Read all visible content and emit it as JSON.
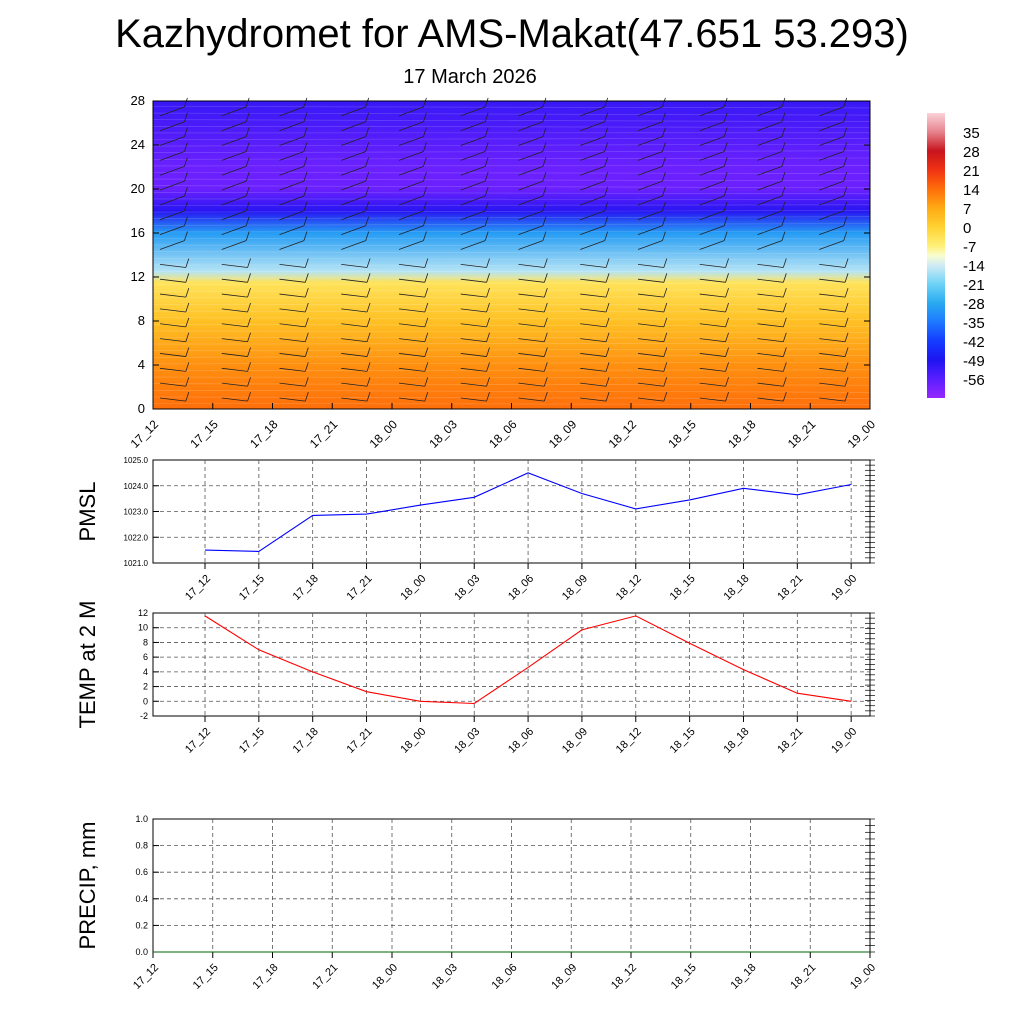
{
  "title": "Kazhydromet for AMS-Makat(47.651 53.293)",
  "subtitle": "17 March 2026",
  "colors": {
    "pmsl_line": "#0000ff",
    "temp_line": "#ff0000",
    "precip_line": "#006400"
  },
  "chart_data": [
    {
      "type": "heatmap",
      "name": "vertical-profile",
      "ytick_labels": [
        "0",
        "4",
        "8",
        "12",
        "16",
        "20",
        "24",
        "28"
      ],
      "ylim": [
        0,
        28
      ],
      "x_tick_labels": [
        "17_12",
        "17_15",
        "17_18",
        "17_21",
        "18_00",
        "18_03",
        "18_06",
        "18_09",
        "18_12",
        "18_15",
        "18_18",
        "18_21",
        "19_00"
      ],
      "colorbar_labels": [
        "35",
        "28",
        "21",
        "14",
        "7",
        "0",
        "-7",
        "-14",
        "-21",
        "-28",
        "-35",
        "-42",
        "-49",
        "-56"
      ],
      "colorbar_range": [
        -63,
        42
      ],
      "level_values": [
        {
          "y": 0,
          "value": 14
        },
        {
          "y": 4,
          "value": 10
        },
        {
          "y": 8,
          "value": 3
        },
        {
          "y": 11.5,
          "value": -4
        },
        {
          "y": 12.5,
          "value": -16
        },
        {
          "y": 16,
          "value": -30
        },
        {
          "y": 18,
          "value": -50
        },
        {
          "y": 20,
          "value": -58
        },
        {
          "y": 22,
          "value": -58
        },
        {
          "y": 28,
          "value": -52
        }
      ]
    },
    {
      "type": "line",
      "name": "pmsl",
      "ylabel": "PMSL",
      "ylim": [
        1021.0,
        1025.0
      ],
      "ytick_labels": [
        "1021.0",
        "1022.0",
        "1023.0",
        "1024.0",
        "1025.0"
      ],
      "categories": [
        "17_12",
        "17_15",
        "17_18",
        "17_21",
        "18_00",
        "18_03",
        "18_06",
        "18_09",
        "18_12",
        "18_15",
        "18_18",
        "18_21",
        "19_00"
      ],
      "values": [
        1021.5,
        1021.45,
        1022.85,
        1022.9,
        1023.25,
        1023.55,
        1024.5,
        1023.7,
        1023.1,
        1023.45,
        1023.9,
        1023.65,
        1024.05
      ],
      "grid": true
    },
    {
      "type": "line",
      "name": "temp",
      "ylabel": "TEMP at 2 M",
      "ylim": [
        -2,
        12
      ],
      "ytick_labels": [
        "-2",
        "0",
        "2",
        "4",
        "6",
        "8",
        "10",
        "12"
      ],
      "categories": [
        "17_12",
        "17_15",
        "17_18",
        "17_21",
        "18_00",
        "18_03",
        "18_06",
        "18_09",
        "18_12",
        "18_15",
        "18_18",
        "18_21",
        "19_00"
      ],
      "values": [
        11.6,
        7.0,
        4.0,
        1.3,
        0.0,
        -0.3,
        4.6,
        9.7,
        11.6,
        7.9,
        4.3,
        1.1,
        0.0
      ],
      "grid": true
    },
    {
      "type": "line",
      "name": "precip",
      "ylabel": "PRECIP, mm",
      "ylim": [
        0,
        1.0
      ],
      "ytick_labels": [
        "0.0",
        "0.2",
        "0.4",
        "0.6",
        "0.8",
        "1.0"
      ],
      "categories": [
        "17_12",
        "17_15",
        "17_18",
        "17_21",
        "18_00",
        "18_03",
        "18_06",
        "18_09",
        "18_12",
        "18_15",
        "18_18",
        "18_21",
        "19_00"
      ],
      "values": [
        0,
        0,
        0,
        0,
        0,
        0,
        0,
        0,
        0,
        0,
        0,
        0,
        0
      ],
      "grid": true
    }
  ]
}
